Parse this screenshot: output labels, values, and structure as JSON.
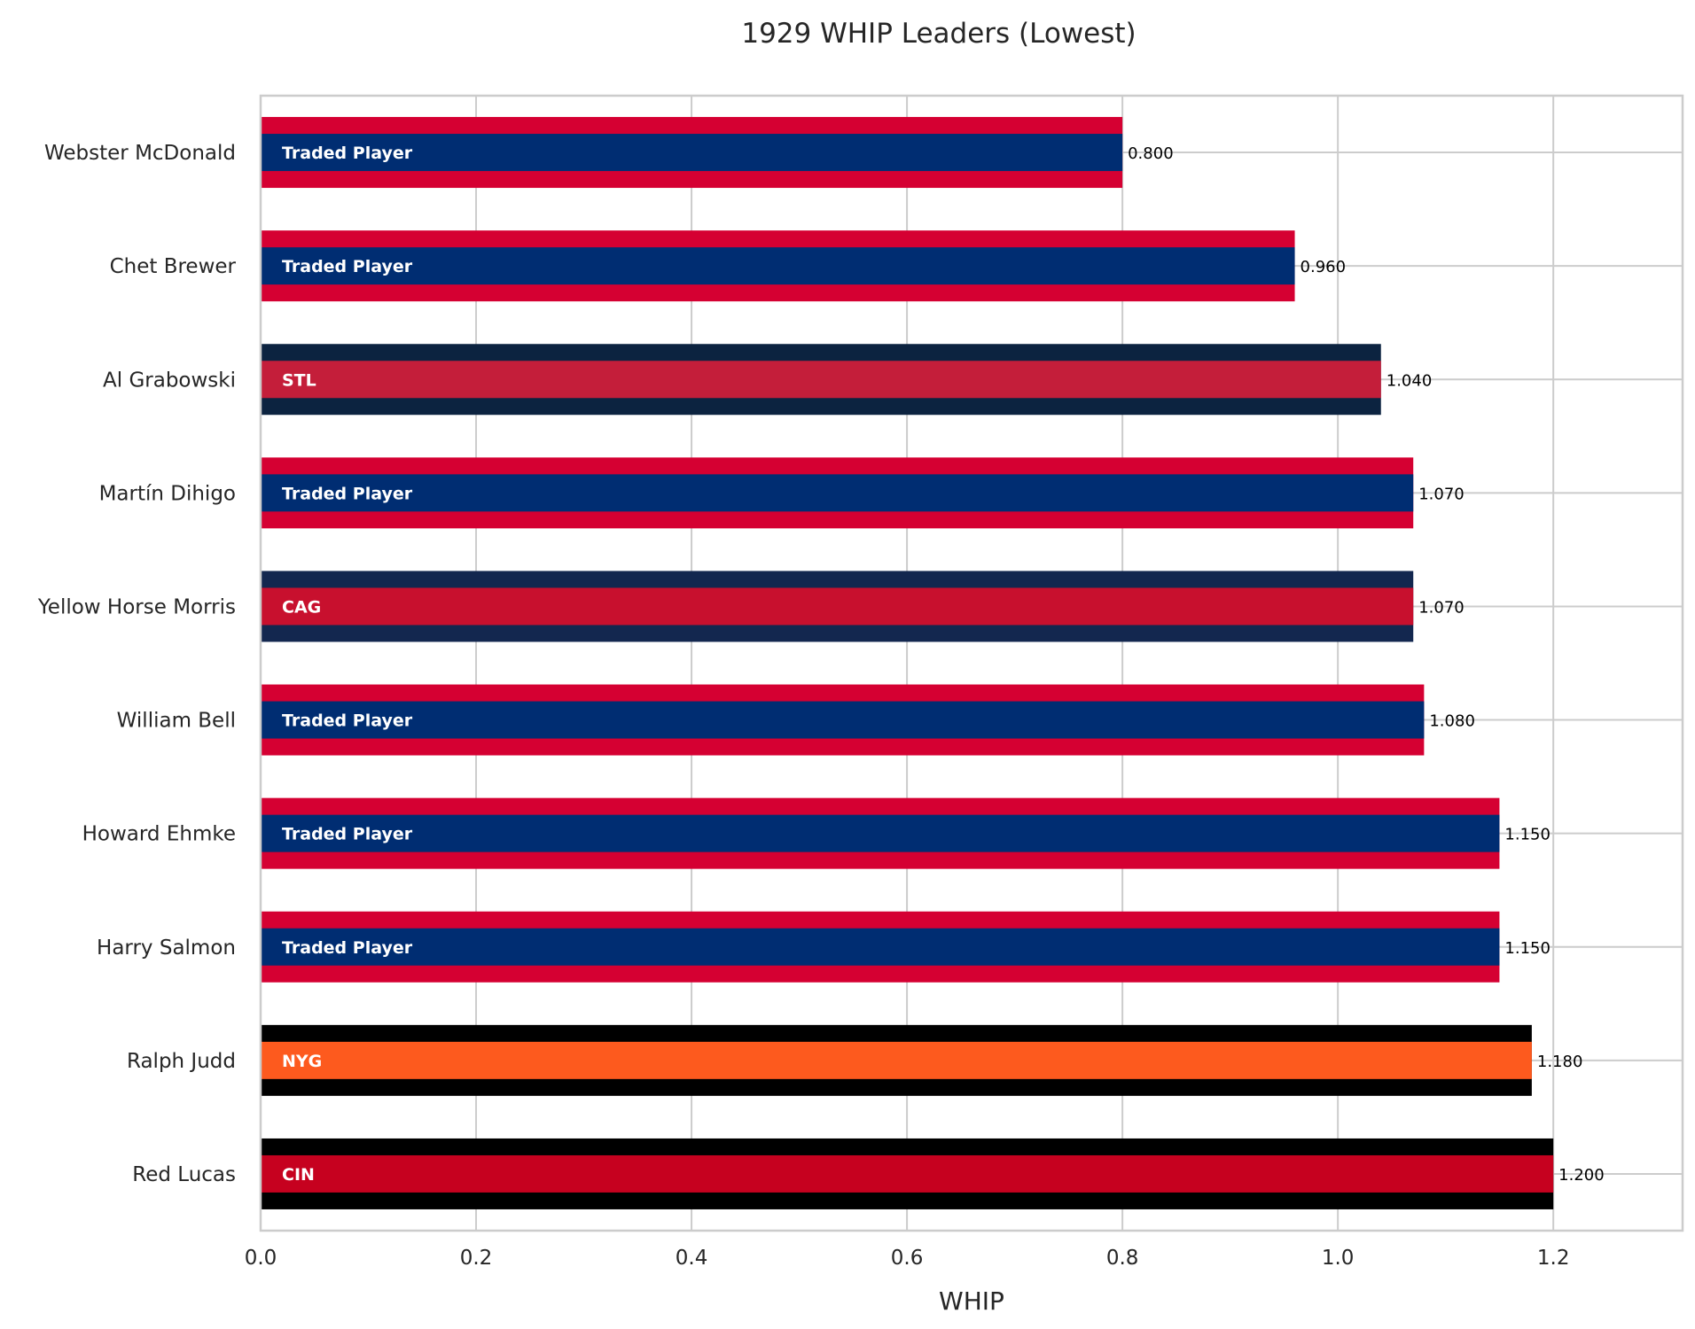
{
  "chart_data": {
    "type": "bar",
    "orientation": "horizontal",
    "title": "1929 WHIP Leaders (Lowest)",
    "xlabel": "WHIP",
    "ylabel": "",
    "xlim": [
      0,
      1.32
    ],
    "xticks": [
      "0.0",
      "0.2",
      "0.4",
      "0.6",
      "0.8",
      "1.0",
      "1.2"
    ],
    "xtick_values": [
      0,
      0.2,
      0.4,
      0.6,
      0.8,
      1.0,
      1.2
    ],
    "grid": true,
    "categories": [
      "Webster McDonald",
      "Chet Brewer",
      "Al Grabowski",
      "Martín Dihigo",
      "Yellow Horse Morris",
      "William Bell",
      "Howard Ehmke",
      "Harry Salmon",
      "Ralph Judd",
      "Red Lucas"
    ],
    "values": [
      0.8,
      0.96,
      1.04,
      1.07,
      1.07,
      1.08,
      1.15,
      1.15,
      1.18,
      1.2
    ],
    "value_labels": [
      "0.800",
      "0.960",
      "1.040",
      "1.070",
      "1.070",
      "1.080",
      "1.150",
      "1.150",
      "1.180",
      "1.200"
    ],
    "teams": [
      "Traded Player",
      "Traded Player",
      "STL",
      "Traded Player",
      "CAG",
      "Traded Player",
      "Traded Player",
      "Traded Player",
      "NYG",
      "CIN"
    ],
    "primary_colors": [
      "#002D72",
      "#002D72",
      "#C41E3A",
      "#002D72",
      "#C8102E",
      "#002D72",
      "#002D72",
      "#002D72",
      "#FD5A1E",
      "#C6011F"
    ],
    "secondary_colors": [
      "#D50032",
      "#D50032",
      "#0C2340",
      "#D50032",
      "#13274F",
      "#D50032",
      "#D50032",
      "#D50032",
      "#000000",
      "#000000"
    ]
  }
}
